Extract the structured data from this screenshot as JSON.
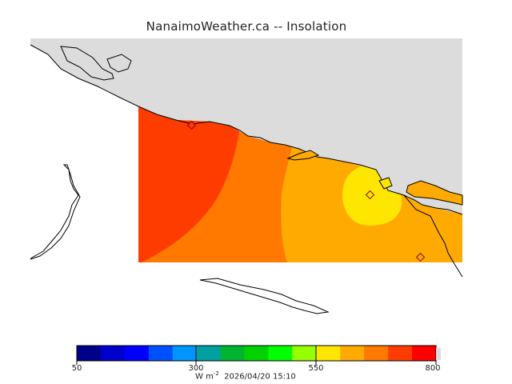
{
  "title": "NanaimoWeather.ca -- Insolation",
  "colorbar": {
    "colors": [
      "#00008b",
      "#0000cd",
      "#0000ff",
      "#0050ff",
      "#0096ff",
      "#00a0a0",
      "#00b432",
      "#00d200",
      "#00ff00",
      "#96ff00",
      "#ffe600",
      "#ffaa00",
      "#ff7800",
      "#ff3c00",
      "#ff0000"
    ],
    "labels": [
      "50",
      "300",
      "550",
      "800"
    ]
  },
  "units_prefix": "W m",
  "units_exponent": "-2",
  "timestamp": "2026/04/20 15:10",
  "colors": {
    "land": "#dcdcdc",
    "coast": "#000000",
    "marker": "#8b0000"
  }
}
